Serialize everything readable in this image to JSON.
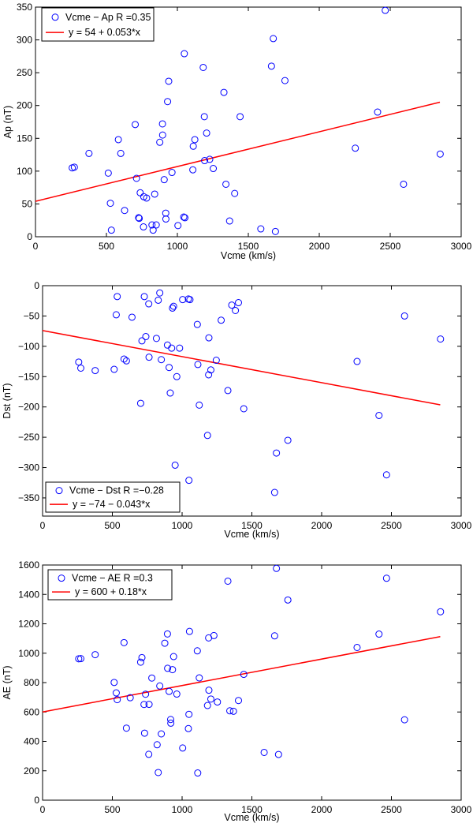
{
  "chart_data": [
    {
      "type": "scatter",
      "xlabel": "Vcme (km/s)",
      "ylabel": "Ap (nT)",
      "xlim": [
        0,
        3000
      ],
      "ylim": [
        0,
        350
      ],
      "xticks": [
        0,
        500,
        1000,
        1500,
        2000,
        2500,
        3000
      ],
      "yticks": [
        0,
        50,
        100,
        150,
        200,
        250,
        300,
        350
      ],
      "xtick_labels": [
        "0",
        "500",
        "1000",
        "1500",
        "2000",
        "2500",
        "3000"
      ],
      "ytick_labels": [
        "0",
        "50",
        "100",
        "150",
        "200",
        "250",
        "300",
        "350"
      ],
      "legend_position": "top-left",
      "legend": {
        "scatter": "Vcme − Ap   R =0.35",
        "fit": "y = 54 + 0.053*x"
      },
      "fit": {
        "intercept": 54,
        "slope": 0.053,
        "x_range": [
          0,
          2850
        ]
      },
      "points": [
        [
          259,
          105
        ],
        [
          274,
          106
        ],
        [
          377,
          127
        ],
        [
          513,
          97
        ],
        [
          528,
          51
        ],
        [
          535,
          10
        ],
        [
          584,
          148
        ],
        [
          601,
          127
        ],
        [
          628,
          40
        ],
        [
          703,
          171
        ],
        [
          712,
          89
        ],
        [
          727,
          29
        ],
        [
          731,
          28
        ],
        [
          738,
          67
        ],
        [
          761,
          15
        ],
        [
          763,
          61
        ],
        [
          783,
          59
        ],
        [
          821,
          18
        ],
        [
          829,
          10
        ],
        [
          840,
          65
        ],
        [
          851,
          18
        ],
        [
          876,
          144
        ],
        [
          895,
          172
        ],
        [
          896,
          155
        ],
        [
          907,
          87
        ],
        [
          918,
          36
        ],
        [
          919,
          27
        ],
        [
          931,
          206
        ],
        [
          939,
          237
        ],
        [
          962,
          98
        ],
        [
          1004,
          17
        ],
        [
          1045,
          30
        ],
        [
          1049,
          279
        ],
        [
          1053,
          29
        ],
        [
          1109,
          102
        ],
        [
          1112,
          138
        ],
        [
          1123,
          148
        ],
        [
          1182,
          258
        ],
        [
          1190,
          183
        ],
        [
          1192,
          116
        ],
        [
          1206,
          158
        ],
        [
          1228,
          118
        ],
        [
          1253,
          104
        ],
        [
          1328,
          220
        ],
        [
          1342,
          80
        ],
        [
          1368,
          24
        ],
        [
          1404,
          66
        ],
        [
          1442,
          183
        ],
        [
          1588,
          12
        ],
        [
          1663,
          260
        ],
        [
          1676,
          302
        ],
        [
          1691,
          8
        ],
        [
          1758,
          238
        ],
        [
          2254,
          135
        ],
        [
          2411,
          190
        ],
        [
          2465,
          345
        ],
        [
          2594,
          80
        ],
        [
          2852,
          126
        ]
      ],
      "colors": {
        "points": "#0000ff",
        "fit": "#ff0000"
      }
    },
    {
      "type": "scatter",
      "xlabel": "Vcme (km/s)",
      "ylabel": "Dst (nT)",
      "xlim": [
        0,
        3000
      ],
      "ylim": [
        -380,
        0
      ],
      "xticks": [
        0,
        500,
        1000,
        1500,
        2000,
        2500,
        3000
      ],
      "yticks": [
        0,
        -50,
        -100,
        -150,
        -200,
        -250,
        -300,
        -350
      ],
      "xtick_labels": [
        "0",
        "500",
        "1000",
        "1500",
        "2000",
        "2500",
        "3000"
      ],
      "ytick_labels": [
        "0",
        "−50",
        "−100",
        "−150",
        "−200",
        "−250",
        "−300",
        "−350"
      ],
      "legend_position": "bottom-left",
      "legend": {
        "scatter": "Vcme − Dst   R =−0.28",
        "fit": "y = −74 − 0.043*x"
      },
      "fit": {
        "intercept": -74,
        "slope": -0.043,
        "x_range": [
          0,
          2850
        ]
      },
      "points": [
        [
          259,
          -126
        ],
        [
          274,
          -136
        ],
        [
          377,
          -140
        ],
        [
          513,
          -138
        ],
        [
          528,
          -48
        ],
        [
          535,
          -18
        ],
        [
          584,
          -121
        ],
        [
          601,
          -124
        ],
        [
          641,
          -52
        ],
        [
          703,
          -194
        ],
        [
          712,
          -91
        ],
        [
          729,
          -18
        ],
        [
          740,
          -84
        ],
        [
          761,
          -30
        ],
        [
          763,
          -118
        ],
        [
          816,
          -87
        ],
        [
          829,
          -24
        ],
        [
          840,
          -12
        ],
        [
          851,
          -122
        ],
        [
          895,
          -98
        ],
        [
          907,
          -135
        ],
        [
          915,
          -177
        ],
        [
          925,
          -103
        ],
        [
          931,
          -37
        ],
        [
          939,
          -34
        ],
        [
          962,
          -150
        ],
        [
          982,
          -103
        ],
        [
          1004,
          -23
        ],
        [
          1045,
          -22
        ],
        [
          1049,
          -321
        ],
        [
          1056,
          -23
        ],
        [
          1109,
          -64
        ],
        [
          1113,
          -130
        ],
        [
          1123,
          -197
        ],
        [
          1182,
          -247
        ],
        [
          1190,
          -147
        ],
        [
          1192,
          -86
        ],
        [
          1206,
          -139
        ],
        [
          1245,
          -123
        ],
        [
          1280,
          -57
        ],
        [
          1328,
          -173
        ],
        [
          1356,
          -32
        ],
        [
          1382,
          -41
        ],
        [
          1404,
          -28
        ],
        [
          1442,
          -203
        ],
        [
          1663,
          -341
        ],
        [
          1676,
          -276
        ],
        [
          1758,
          -255
        ],
        [
          2254,
          -125
        ],
        [
          2411,
          -214
        ],
        [
          2465,
          -312
        ],
        [
          2594,
          -50
        ],
        [
          2852,
          -88
        ],
        [
          950,
          -296
        ]
      ],
      "colors": {
        "points": "#0000ff",
        "fit": "#ff0000"
      }
    },
    {
      "type": "scatter",
      "xlabel": "Vcme (km/s)",
      "ylabel": "AE (nT)",
      "xlim": [
        0,
        3000
      ],
      "ylim": [
        0,
        1600
      ],
      "xticks": [
        0,
        500,
        1000,
        1500,
        2000,
        2500,
        3000
      ],
      "yticks": [
        0,
        200,
        400,
        600,
        800,
        1000,
        1200,
        1400,
        1600
      ],
      "xtick_labels": [
        "0",
        "500",
        "1000",
        "1500",
        "2000",
        "2500",
        "3000"
      ],
      "ytick_labels": [
        "0",
        "200",
        "400",
        "600",
        "800",
        "1000",
        "1200",
        "1400",
        "1600"
      ],
      "legend_position": "top-left",
      "legend": {
        "scatter": "Vcme − AE   R =0.3",
        "fit": "y = 600 + 0.18*x"
      },
      "fit": {
        "intercept": 600,
        "slope": 0.18,
        "x_range": [
          0,
          2850
        ]
      },
      "points": [
        [
          259,
          962
        ],
        [
          274,
          963
        ],
        [
          377,
          990
        ],
        [
          513,
          801
        ],
        [
          528,
          730
        ],
        [
          535,
          684
        ],
        [
          584,
          1072
        ],
        [
          601,
          490
        ],
        [
          628,
          697
        ],
        [
          703,
          939
        ],
        [
          712,
          970
        ],
        [
          727,
          651
        ],
        [
          731,
          456
        ],
        [
          738,
          721
        ],
        [
          761,
          312
        ],
        [
          763,
          652
        ],
        [
          783,
          831
        ],
        [
          821,
          377
        ],
        [
          829,
          188
        ],
        [
          840,
          777
        ],
        [
          851,
          451
        ],
        [
          876,
          1068
        ],
        [
          895,
          1131
        ],
        [
          896,
          897
        ],
        [
          907,
          740
        ],
        [
          918,
          549
        ],
        [
          919,
          524
        ],
        [
          931,
          888
        ],
        [
          939,
          977
        ],
        [
          962,
          722
        ],
        [
          1004,
          355
        ],
        [
          1045,
          487
        ],
        [
          1049,
          584
        ],
        [
          1053,
          1148
        ],
        [
          1109,
          1016
        ],
        [
          1112,
          185
        ],
        [
          1123,
          832
        ],
        [
          1182,
          644
        ],
        [
          1190,
          1104
        ],
        [
          1192,
          748
        ],
        [
          1206,
          688
        ],
        [
          1228,
          1120
        ],
        [
          1253,
          668
        ],
        [
          1328,
          1490
        ],
        [
          1342,
          608
        ],
        [
          1368,
          605
        ],
        [
          1404,
          678
        ],
        [
          1442,
          856
        ],
        [
          1588,
          325
        ],
        [
          1663,
          1118
        ],
        [
          1676,
          1577
        ],
        [
          1691,
          311
        ],
        [
          1758,
          1362
        ],
        [
          2254,
          1039
        ],
        [
          2411,
          1130
        ],
        [
          2465,
          1510
        ],
        [
          2594,
          547
        ],
        [
          2852,
          1282
        ]
      ],
      "colors": {
        "points": "#0000ff",
        "fit": "#ff0000"
      }
    }
  ]
}
